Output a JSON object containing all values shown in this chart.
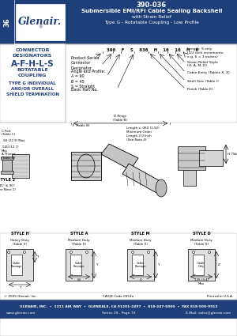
{
  "title_number": "390-036",
  "title_main": "Submersible EMI/RFI Cable Sealing Backshell",
  "title_sub1": "with Strain Relief",
  "title_sub2": "Type G - Rotatable Coupling - Low Profile",
  "series_tab": "36",
  "logo_text": "Glenair.",
  "part_number_example": "390  F  S  036  M  16  10  M  6",
  "footer_company": "GLENAIR, INC.  •  1211 AIR WAY  •  GLENDALE, CA 91201-2497  •  818-247-6000  •  FAX 818-500-9912",
  "footer_web": "www.glenair.com",
  "footer_series": "Series 39 - Page 74",
  "footer_email": "E-Mail: sales@glenair.com",
  "footer_copyright": "© 2005 Glenair, Inc.",
  "footer_cacode": "CA/QE Code 0053a",
  "footer_printed": "Printed in U.S.A.",
  "bg_blue": "#1e3f7a",
  "bg_white": "#ffffff",
  "text_blue": "#1e3f7a",
  "text_white": "#ffffff",
  "gray_light": "#d8d8d8",
  "gray_med": "#b0b0b0",
  "gray_dark": "#888888"
}
